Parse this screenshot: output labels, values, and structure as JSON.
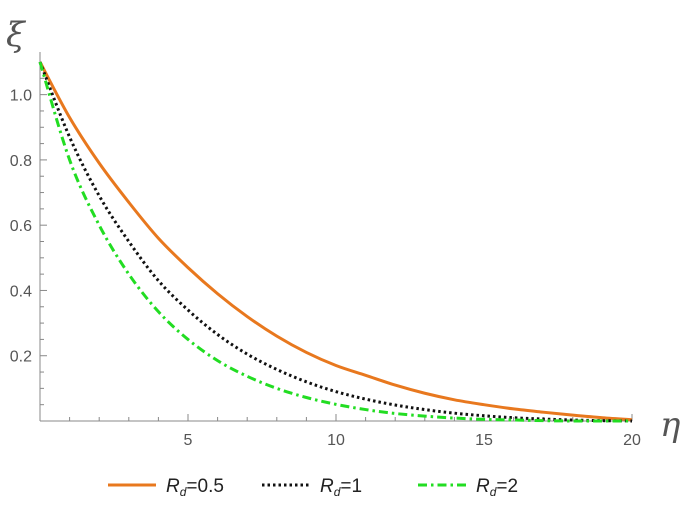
{
  "chart_data": {
    "type": "line",
    "xlabel": "η",
    "ylabel": "ξ",
    "xlim": [
      0,
      20
    ],
    "ylim": [
      0,
      1.1
    ],
    "xticks": [
      {
        "value": 5,
        "label": "5"
      },
      {
        "value": 10,
        "label": "10"
      },
      {
        "value": 15,
        "label": "15"
      },
      {
        "value": 20,
        "label": "20"
      }
    ],
    "yticks": [
      {
        "value": 0.2,
        "label": "0.2"
      },
      {
        "value": 0.4,
        "label": "0.4"
      },
      {
        "value": 0.6,
        "label": "0.6"
      },
      {
        "value": 0.8,
        "label": "0.8"
      },
      {
        "value": 1.0,
        "label": "1.0"
      }
    ],
    "grid": false,
    "legend_position": "bottom",
    "series": [
      {
        "name": "R_d=0.5",
        "legend": {
          "symbol": "R",
          "subscript": "d",
          "rest": "=0.5"
        },
        "color": "#E8781E",
        "dash": "solid",
        "x": [
          0,
          1,
          2,
          3,
          4,
          5,
          6,
          7,
          8,
          9,
          10,
          11,
          12,
          13,
          14,
          15,
          16,
          17,
          18,
          19,
          20
        ],
        "y": [
          1.1,
          0.93,
          0.79,
          0.67,
          0.56,
          0.47,
          0.39,
          0.32,
          0.26,
          0.21,
          0.17,
          0.14,
          0.11,
          0.085,
          0.065,
          0.05,
          0.037,
          0.027,
          0.018,
          0.01,
          0.004
        ]
      },
      {
        "name": "R_d=1",
        "legend": {
          "symbol": "R",
          "subscript": "d",
          "rest": "=1"
        },
        "color": "#111111",
        "dash": "dotted",
        "x": [
          0,
          1,
          2,
          3,
          4,
          5,
          6,
          7,
          8,
          9,
          10,
          11,
          12,
          13,
          14,
          15,
          16,
          17,
          18,
          19,
          20
        ],
        "y": [
          1.1,
          0.87,
          0.69,
          0.55,
          0.43,
          0.34,
          0.265,
          0.205,
          0.158,
          0.12,
          0.09,
          0.067,
          0.049,
          0.035,
          0.024,
          0.016,
          0.01,
          0.006,
          0.003,
          0.001,
          0.0
        ]
      },
      {
        "name": "R_d=2",
        "legend": {
          "symbol": "R",
          "subscript": "d",
          "rest": "=2"
        },
        "color": "#22DD22",
        "dash": "dashdot",
        "x": [
          0,
          1,
          2,
          3,
          4,
          5,
          6,
          7,
          8,
          9,
          10,
          11,
          12,
          13,
          14,
          15,
          16,
          17,
          18,
          19,
          20
        ],
        "y": [
          1.1,
          0.8,
          0.6,
          0.45,
          0.335,
          0.25,
          0.185,
          0.137,
          0.1,
          0.072,
          0.051,
          0.035,
          0.023,
          0.015,
          0.009,
          0.005,
          0.003,
          0.001,
          0.0,
          0.0,
          0.0
        ]
      }
    ]
  }
}
